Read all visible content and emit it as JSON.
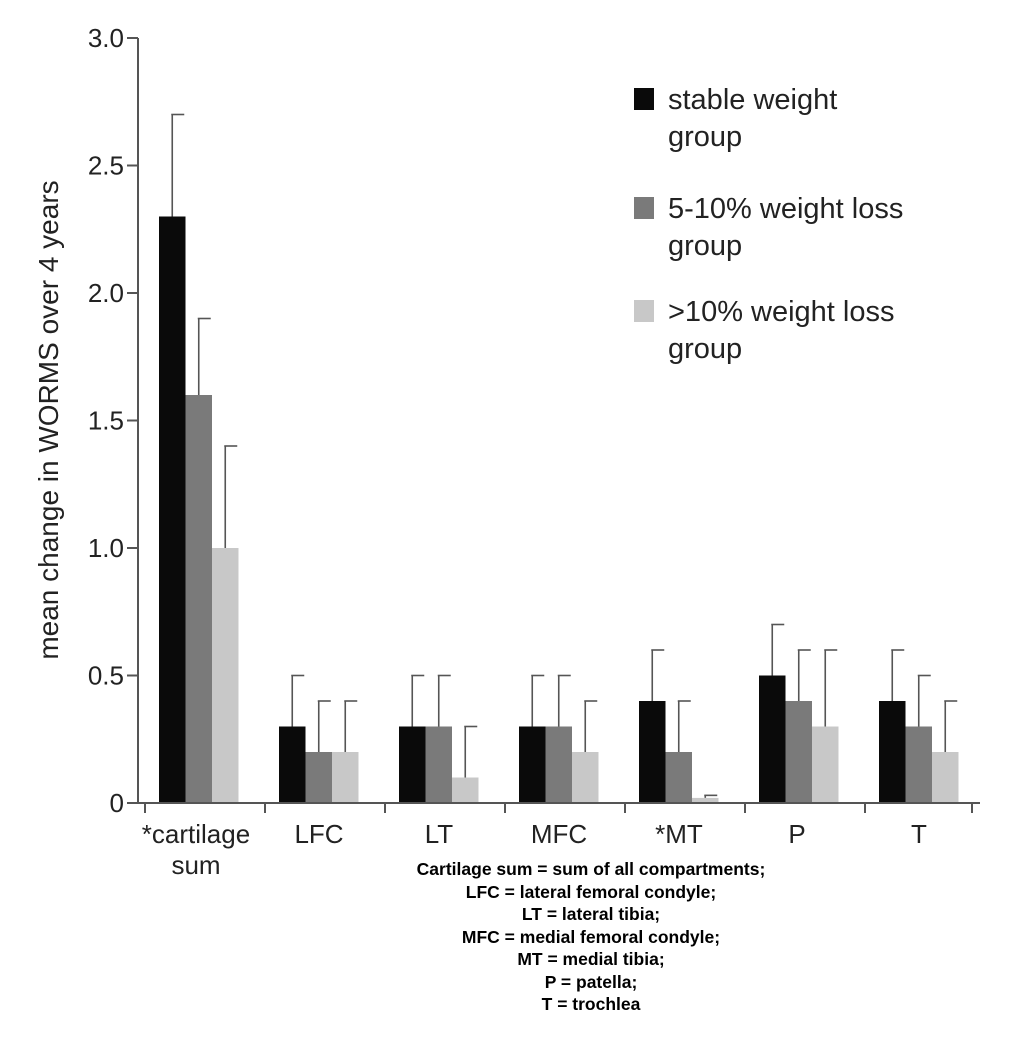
{
  "chart_data": {
    "type": "bar",
    "ylabel": "mean change in WORMS over 4 years",
    "xlabel": "",
    "ylim": [
      0,
      3.0
    ],
    "yticks": [
      0,
      0.5,
      1.0,
      1.5,
      2.0,
      2.5,
      3.0
    ],
    "ytick_labels": [
      "0",
      "0.5",
      "1.0",
      "1.5",
      "2.0",
      "2.5",
      "3.0"
    ],
    "categories": [
      "*cartilage sum",
      "LFC",
      "LT",
      "MFC",
      "*MT",
      "P",
      "T"
    ],
    "series": [
      {
        "name": "stable weight group",
        "color": "#0a0a0a",
        "values": [
          2.3,
          0.3,
          0.3,
          0.3,
          0.4,
          0.5,
          0.4
        ],
        "error_upper": [
          2.7,
          0.5,
          0.5,
          0.5,
          0.6,
          0.7,
          0.6
        ]
      },
      {
        "name": "5-10% weight loss group",
        "color": "#7a7a7a",
        "values": [
          1.6,
          0.2,
          0.3,
          0.3,
          0.2,
          0.4,
          0.3
        ],
        "error_upper": [
          1.9,
          0.4,
          0.5,
          0.5,
          0.4,
          0.6,
          0.5
        ]
      },
      {
        "name": ">10% weight loss group",
        "color": "#c8c8c8",
        "values": [
          1.0,
          0.2,
          0.1,
          0.2,
          0.02,
          0.3,
          0.2
        ],
        "error_upper": [
          1.4,
          0.4,
          0.3,
          0.4,
          0.03,
          0.6,
          0.4
        ]
      }
    ],
    "legend_lines": [
      [
        "stable weight",
        "group"
      ],
      [
        "5-10% weight loss",
        "group"
      ],
      [
        ">10% weight loss",
        "group"
      ]
    ],
    "legend_position": "top-right",
    "grid": false
  },
  "footnote": [
    "Cartilage sum = sum of all compartments;",
    "LFC = lateral femoral condyle;",
    "LT = lateral tibia;",
    "MFC = medial femoral condyle;",
    "MT = medial tibia;",
    "P = patella;",
    "T = trochlea"
  ]
}
